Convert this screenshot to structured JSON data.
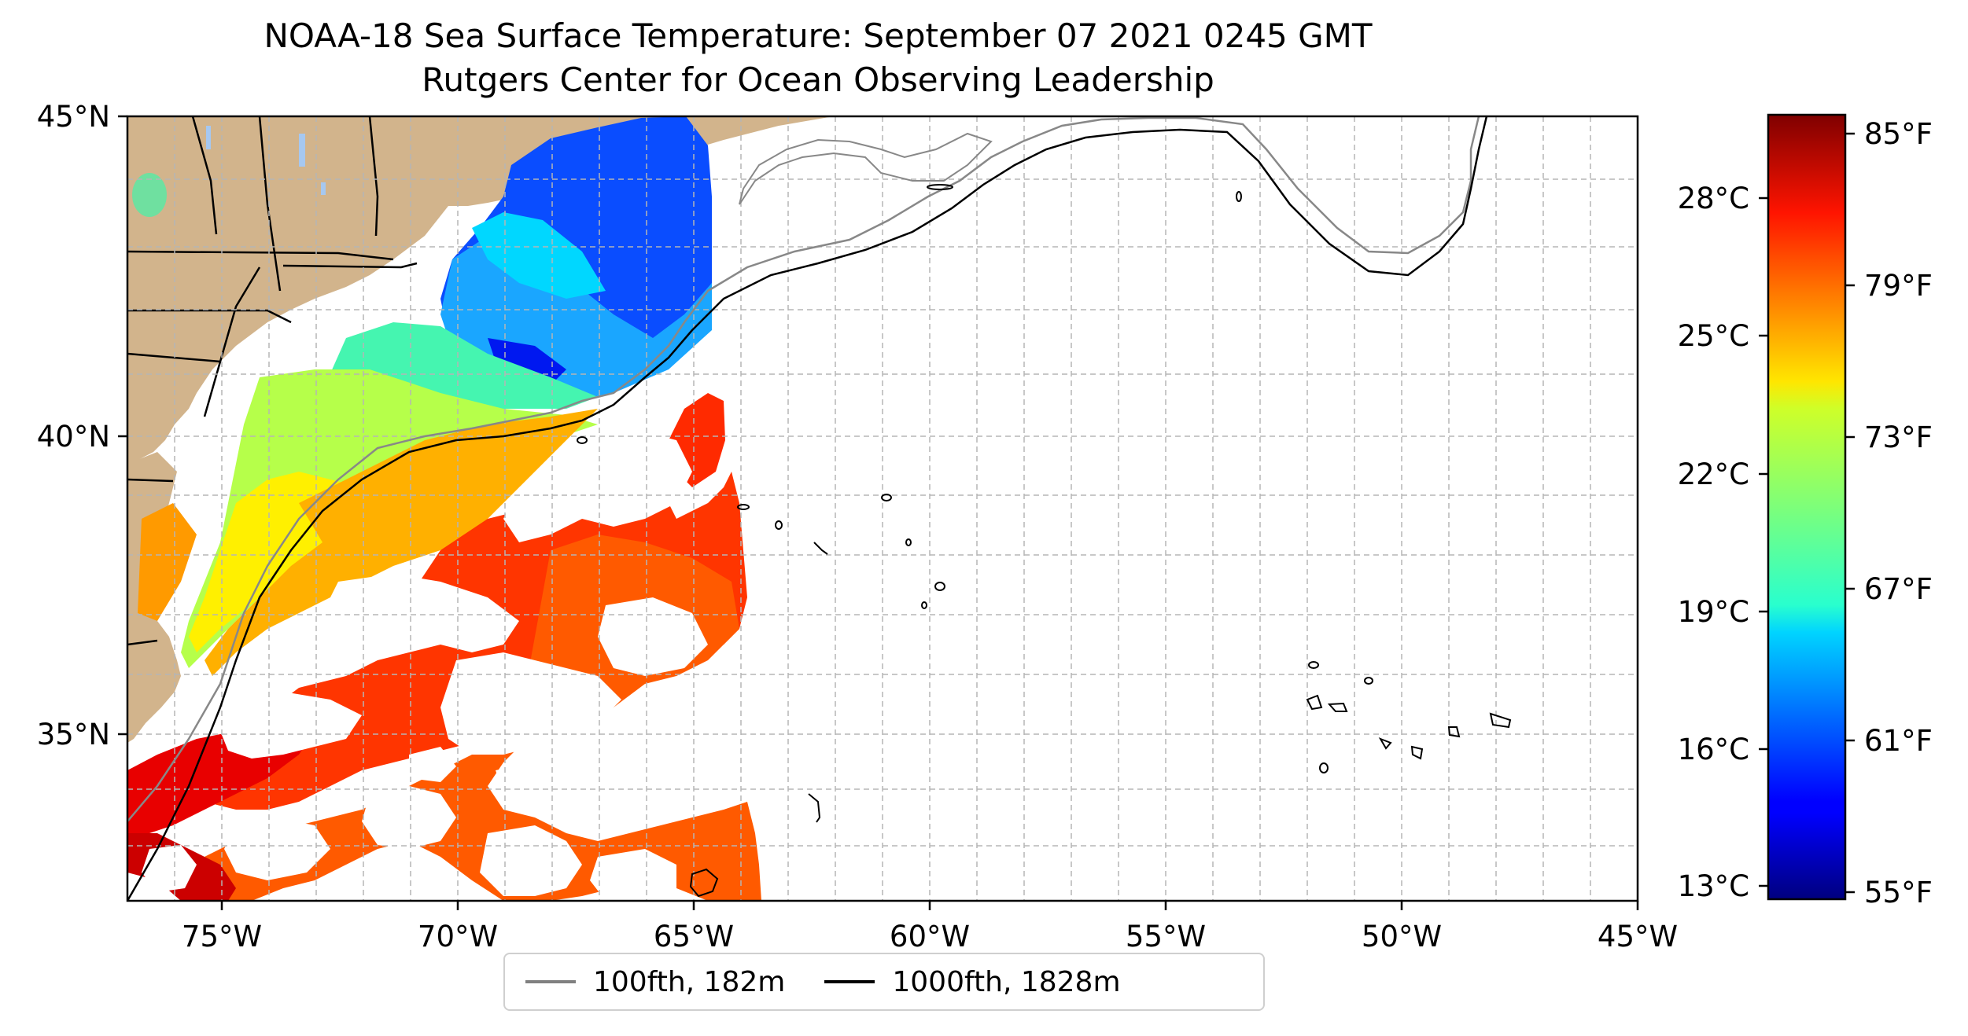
{
  "title": {
    "line1": "NOAA-18 Sea Surface Temperature: September 07 2021 0245 GMT",
    "line2": "Rutgers Center for Ocean Observing Leadership"
  },
  "map": {
    "lat_labels": [
      "45°N",
      "40°N",
      "35°N"
    ],
    "lon_labels": [
      "75°W",
      "70°W",
      "65°W",
      "60°W",
      "55°W",
      "50°W",
      "45°W"
    ],
    "lon_range": [
      -77,
      -45
    ],
    "lat_range": [
      32.5,
      45
    ],
    "gridlines": true,
    "colors": {
      "land": "#d2b48c",
      "lakes": "#a6c8f0",
      "isobath_100": "#888888",
      "isobath_1000": "#000000"
    }
  },
  "legend": {
    "items": [
      {
        "label": "100fth, 182m",
        "color": "#808080"
      },
      {
        "label": "1000fth, 1828m",
        "color": "#000000"
      }
    ]
  },
  "colorbar": {
    "colormap": "jet",
    "celsius_labels": [
      "28°C",
      "25°C",
      "22°C",
      "19°C",
      "16°C",
      "13°C"
    ],
    "fahrenheit_labels": [
      "85°F",
      "79°F",
      "73°F",
      "67°F",
      "61°F",
      "55°F"
    ],
    "range_f": [
      55,
      86
    ]
  }
}
